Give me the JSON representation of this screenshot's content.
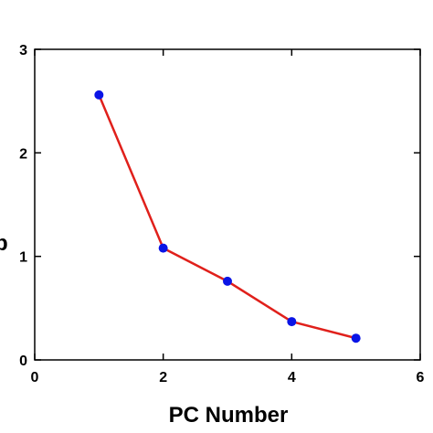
{
  "chart_data": {
    "type": "line",
    "title": "",
    "xlabel": "PC Number",
    "ylabel": "",
    "xlim": [
      0,
      6
    ],
    "ylim": [
      0,
      3
    ],
    "xticks": [
      0,
      2,
      4,
      6
    ],
    "yticks": [
      0,
      1,
      2,
      3
    ],
    "grid": false,
    "legend": "none",
    "series": [
      {
        "x": [
          1,
          2,
          3,
          4,
          5
        ],
        "y": [
          2.56,
          1.08,
          0.76,
          0.37,
          0.21
        ],
        "line_color": "#e0201b",
        "marker_color": "#0a14e6"
      }
    ]
  },
  "partial_ylabel_glyph": "p"
}
